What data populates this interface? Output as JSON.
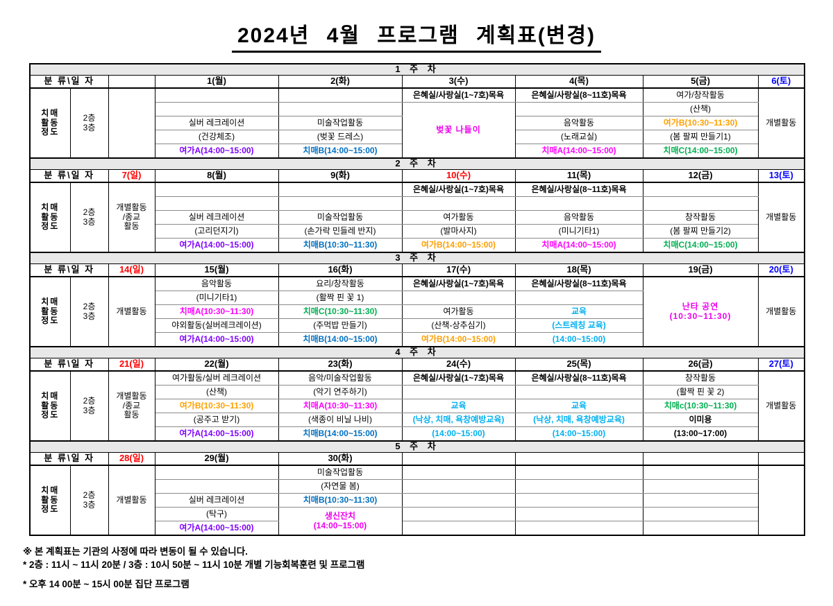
{
  "title": "2024년 4월 프로그램 계획표(변경)",
  "corner": "분 류\\일 자",
  "left": {
    "category": [
      "치매",
      "활동",
      "정도"
    ],
    "floors": [
      "2층",
      "3층"
    ]
  },
  "colors": {
    "sun": "#FF0000",
    "sat": "#0000FF",
    "yeogaA": "#7F00FF",
    "yeogaB": "#FFA000",
    "chimaeA": "#FF00FF",
    "chimaeB": "#0070C0",
    "chimaeC": "#00B050",
    "gyoyuk": "#00B0F0",
    "event": "#EE00EE",
    "band_bg": "#E8E8E8"
  },
  "weeks": [
    {
      "band": "1 주 차",
      "header": [
        {
          "t": ""
        },
        {
          "t": "1(월)"
        },
        {
          "t": "2(화)"
        },
        {
          "t": "3(수)"
        },
        {
          "t": "4(목)"
        },
        {
          "t": "5(금)"
        },
        {
          "t": "6(토)",
          "c": "sat"
        }
      ],
      "sun": [],
      "sat": "개별활동",
      "days": [
        [
          {},
          {},
          {
            "t": "실버 레크레이션"
          },
          {
            "t": "(건강체조)"
          },
          {
            "t": "여가A(14:00~15:00)",
            "c": "yeogaA",
            "b": 1
          }
        ],
        [
          {},
          {},
          {
            "t": "미술작업활동"
          },
          {
            "t": "(벚꽃 드레스)"
          },
          {
            "t": "치매B(14:00~15:00)",
            "c": "chimaeB",
            "b": 1
          }
        ],
        [
          {
            "t": "은혜실/사랑실(1~7호)목욕",
            "b": 1
          },
          {
            "rs": 4,
            "lines": [
              "벚꽃 나들이"
            ],
            "c": "event",
            "b": 1,
            "big": 1
          }
        ],
        [
          {
            "t": "은혜실/사랑실(8~11호)목욕",
            "b": 1
          },
          {},
          {
            "t": "음악활동"
          },
          {
            "t": "(노래교실)"
          },
          {
            "t": "치매A(14:00~15:00)",
            "c": "chimaeA",
            "b": 1
          }
        ],
        [
          {
            "t": "여가/창작활동"
          },
          {
            "t": "(산책)"
          },
          {
            "t": "여가B(10:30~11:30)",
            "c": "yeogaB",
            "b": 1
          },
          {
            "t": "(봄 팔찌 만들기1)"
          },
          {
            "t": "치매C(14:00~15:00)",
            "c": "chimaeC",
            "b": 1
          }
        ]
      ]
    },
    {
      "band": "2 주 차",
      "header": [
        {
          "t": "7(일)",
          "c": "sun"
        },
        {
          "t": "8(월)"
        },
        {
          "t": "9(화)"
        },
        {
          "t": "10(수)",
          "c": "sun"
        },
        {
          "t": "11(목)"
        },
        {
          "t": "12(금)"
        },
        {
          "t": "13(토)",
          "c": "sat"
        }
      ],
      "sun": [
        "개별활동",
        "/종교",
        "활동"
      ],
      "sat": "개별활동",
      "days": [
        [
          {},
          {},
          {
            "t": "실버 레크레이션"
          },
          {
            "t": "(고리던지기)"
          },
          {
            "t": "여가A(14:00~15:00)",
            "c": "yeogaA",
            "b": 1
          }
        ],
        [
          {},
          {},
          {
            "t": "미술작업활동"
          },
          {
            "t": "(손가락 민들레 반지)"
          },
          {
            "t": "치매B(10:30~11:30)",
            "c": "chimaeB",
            "b": 1
          }
        ],
        [
          {
            "t": "은혜실/사랑실(1~7호)목욕",
            "b": 1
          },
          {},
          {
            "t": "여가활동"
          },
          {
            "t": "(발마사지)"
          },
          {
            "t": "여가B(14:00~15:00)",
            "c": "yeogaB",
            "b": 1
          }
        ],
        [
          {
            "t": "은혜실/사랑실(8~11호)목욕",
            "b": 1
          },
          {},
          {
            "t": "음악활동"
          },
          {
            "t": "(미니기타1)"
          },
          {
            "t": "치매A(14:00~15:00)",
            "c": "chimaeA",
            "b": 1
          }
        ],
        [
          {},
          {},
          {
            "t": "창작활동"
          },
          {
            "t": "(봄 팔찌 만들기2)"
          },
          {
            "t": "치매C(14:00~15:00)",
            "c": "chimaeC",
            "b": 1
          }
        ]
      ]
    },
    {
      "band": "3 주 차",
      "header": [
        {
          "t": "14(일)",
          "c": "sun"
        },
        {
          "t": "15(월)"
        },
        {
          "t": "16(화)"
        },
        {
          "t": "17(수)"
        },
        {
          "t": "18(목)"
        },
        {
          "t": "19(금)"
        },
        {
          "t": "20(토)",
          "c": "sat"
        }
      ],
      "sun": [
        "개별활동"
      ],
      "sat": "개별활동",
      "days": [
        [
          {
            "t": "음악활동"
          },
          {
            "t": "(미니기타1)"
          },
          {
            "t": "치매A(10:30~11:30)",
            "c": "chimaeA",
            "b": 1
          },
          {
            "t": "야외활동(실버레크레이션)"
          },
          {
            "t": "여가A(14:00~15:00)",
            "c": "yeogaA",
            "b": 1
          }
        ],
        [
          {
            "t": "요리/창작활동"
          },
          {
            "t": "(활짝 핀 꽃 1)"
          },
          {
            "t": "치매C(10:30~11:30)",
            "c": "chimaeC",
            "b": 1
          },
          {
            "t": "(주먹밥 만들기)"
          },
          {
            "t": "치매B(14:00~15:00)",
            "c": "chimaeB",
            "b": 1
          }
        ],
        [
          {
            "t": "은혜실/사랑실(1~7호)목욕",
            "b": 1
          },
          {},
          {
            "t": "여가활동"
          },
          {
            "t": "(산책-상추심기)"
          },
          {
            "t": "여가B(14:00~15:00)",
            "c": "yeogaB",
            "b": 1
          }
        ],
        [
          {
            "t": "은혜실/사랑실(8~11호)목욕",
            "b": 1
          },
          {},
          {
            "t": "교육",
            "c": "gyoyuk",
            "b": 1
          },
          {
            "t": "(스트레칭 교육)",
            "c": "gyoyuk",
            "b": 1
          },
          {
            "t": "(14:00~15:00)",
            "c": "gyoyuk",
            "b": 1
          }
        ],
        [
          {
            "rs": 5,
            "lines": [
              "난타 공연",
              "(10:30~11:30)"
            ],
            "c": "event",
            "b": 1,
            "big": 1
          }
        ]
      ]
    },
    {
      "band": "4 주 차",
      "header": [
        {
          "t": "21(일)",
          "c": "sun"
        },
        {
          "t": "22(월)"
        },
        {
          "t": "23(화)"
        },
        {
          "t": "24(수)"
        },
        {
          "t": "25(목)"
        },
        {
          "t": "26(금)"
        },
        {
          "t": "27(토)",
          "c": "sat"
        }
      ],
      "sun": [
        "개별활동",
        "/종교",
        "활동"
      ],
      "sat": "개별활동",
      "days": [
        [
          {
            "t": "여가활동/실버 레크레이션"
          },
          {
            "t": "(산책)"
          },
          {
            "t": "여가B(10:30~11:30)",
            "c": "yeogaB",
            "b": 1
          },
          {
            "t": "(공주고 받기)"
          },
          {
            "t": "여가A(14:00~15:00)",
            "c": "yeogaA",
            "b": 1
          }
        ],
        [
          {
            "t": "음악/미술작업활동"
          },
          {
            "t": "(악기 연주하기)"
          },
          {
            "t": "치매A(10:30~11:30)",
            "c": "chimaeA",
            "b": 1
          },
          {
            "t": "(색종이 비닐 나비)"
          },
          {
            "t": "치매B(14:00~15:00)",
            "c": "chimaeB",
            "b": 1
          }
        ],
        [
          {
            "t": "은혜실/사랑실(1~7호)목욕",
            "b": 1
          },
          {},
          {
            "t": "교육",
            "c": "gyoyuk",
            "b": 1
          },
          {
            "t": "(낙상, 치매, 욕창예방교육)",
            "c": "gyoyuk",
            "b": 1
          },
          {
            "t": "(14:00~15:00)",
            "c": "gyoyuk",
            "b": 1
          }
        ],
        [
          {
            "t": "은혜실/사랑실(8~11호)목욕",
            "b": 1
          },
          {},
          {
            "t": "교육",
            "c": "gyoyuk",
            "b": 1
          },
          {
            "t": "(낙상, 치매, 욕창예방교육)",
            "c": "gyoyuk",
            "b": 1
          },
          {
            "t": "(14:00~15:00)",
            "c": "gyoyuk",
            "b": 1
          }
        ],
        [
          {
            "t": "창작활동"
          },
          {
            "t": "(활짝 핀 꽃 2)"
          },
          {
            "t": "치매c(10:30~11:30)",
            "c": "chimaeC",
            "b": 1
          },
          {
            "t": "이미용",
            "b": 1
          },
          {
            "t": "(13:00~17:00)",
            "b": 1
          }
        ]
      ]
    },
    {
      "band": "5 주 차",
      "header": [
        {
          "t": "28(일)",
          "c": "sun"
        },
        {
          "t": "29(월)"
        },
        {
          "t": "30(화)"
        },
        {
          "t": ""
        },
        {
          "t": ""
        },
        {
          "t": ""
        },
        {
          "t": ""
        }
      ],
      "sun": [
        "개별활동"
      ],
      "sat": "",
      "days": [
        [
          {},
          {},
          {
            "t": "실버 레크레이션"
          },
          {
            "t": "(탁구)"
          },
          {
            "t": "여가A(14:00~15:00)",
            "c": "yeogaA",
            "b": 1
          }
        ],
        [
          {
            "t": "미술작업활동"
          },
          {
            "t": "(자연물 봄)"
          },
          {
            "t": "치매B(10:30~11:30)",
            "c": "chimaeB",
            "b": 1
          },
          {
            "rs": 2,
            "lines": [
              "생신잔치",
              "(14:00~15:00)"
            ],
            "c": "event",
            "b": 1
          }
        ],
        [
          {},
          {},
          {},
          {},
          {}
        ],
        [
          {},
          {},
          {},
          {},
          {}
        ],
        [
          {},
          {},
          {},
          {},
          {}
        ]
      ]
    }
  ],
  "notes": [
    "※ 본 계획표는 기관의 사정에 따라 변동이 될 수 있습니다.",
    "* 2층 : 11시 ~ 11시 20분 / 3층 : 10시 50분 ~ 11시 10분 개별 기능회복훈련 및 프로그램",
    "* 오후 14 00분 ~ 15시 00분 집단 프로그램"
  ]
}
